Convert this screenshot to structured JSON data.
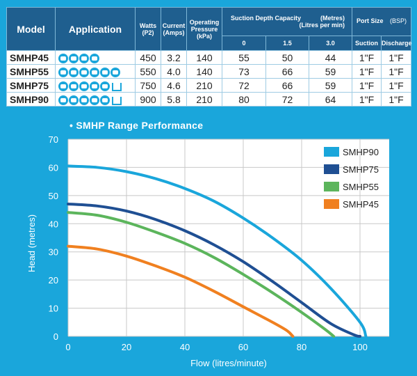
{
  "table": {
    "headers": {
      "model": "Model",
      "application": "Application",
      "watts": "Watts",
      "watts_unit": "(P2)",
      "current": "Current",
      "current_unit": "(Amps)",
      "pressure": "Operating Pressure",
      "pressure_unit": "(kPa)",
      "suction_title": "Suction Depth Capacity",
      "suction_unit1": "(Metres)",
      "suction_unit2": "(Litres per min)",
      "suction_depths": [
        "0",
        "1.5",
        "3.0"
      ],
      "port_title": "Port Size",
      "port_unit": "(BSP)",
      "port_suction": "Suction",
      "port_discharge": "Discharge"
    },
    "rows": [
      {
        "model": "SMHP45",
        "icons": [
          "tap-icon",
          "tap-icon",
          "tap-icon",
          "tap-icon"
        ],
        "watts": "450",
        "current": "3.2",
        "pressure": "140",
        "flow0": "55",
        "flow15": "50",
        "flow30": "44",
        "suction": "1\"F",
        "discharge": "1\"F"
      },
      {
        "model": "SMHP55",
        "icons": [
          "tap-icon",
          "tap-icon",
          "tap-icon",
          "tap-icon",
          "tap-icon",
          "tap-icon"
        ],
        "watts": "550",
        "current": "4.0",
        "pressure": "140",
        "flow0": "73",
        "flow15": "66",
        "flow30": "59",
        "suction": "1\"F",
        "discharge": "1\"F"
      },
      {
        "model": "SMHP75",
        "icons": [
          "tap-icon",
          "tap-icon",
          "tap-icon",
          "tap-icon",
          "tap-icon",
          "sprinkler-icon"
        ],
        "watts": "750",
        "current": "4.6",
        "pressure": "210",
        "flow0": "72",
        "flow15": "66",
        "flow30": "59",
        "suction": "1\"F",
        "discharge": "1\"F"
      },
      {
        "model": "SMHP90",
        "icons": [
          "tap-icon",
          "tap-icon",
          "tap-icon",
          "tap-icon",
          "tap-icon",
          "sprinkler-icon"
        ],
        "watts": "900",
        "current": "5.8",
        "pressure": "210",
        "flow0": "80",
        "flow15": "72",
        "flow30": "64",
        "suction": "1\"F",
        "discharge": "1\"F"
      }
    ]
  },
  "chart_data": {
    "type": "line",
    "title": "• SMHP Range Performance",
    "xlabel": "Flow (litres/minute)",
    "ylabel": "Head (metres)",
    "xlim": [
      0,
      110
    ],
    "ylim": [
      0,
      70
    ],
    "xticks": [
      0,
      20,
      40,
      60,
      80,
      100
    ],
    "yticks": [
      0,
      10,
      20,
      30,
      40,
      50,
      60,
      70
    ],
    "grid": true,
    "legend_position": "top-right",
    "series": [
      {
        "name": "SMHP90",
        "color": "#1aa6db",
        "x": [
          0,
          10,
          20,
          30,
          40,
          50,
          60,
          70,
          80,
          90,
          100,
          102
        ],
        "y": [
          60.5,
          60,
          58.5,
          56,
          52.5,
          48,
          42,
          35,
          27,
          17,
          5,
          0
        ]
      },
      {
        "name": "SMHP75",
        "color": "#1f4f93",
        "x": [
          0,
          10,
          20,
          30,
          40,
          50,
          60,
          70,
          80,
          90,
          98,
          100
        ],
        "y": [
          47,
          46.3,
          44.5,
          41.5,
          37.5,
          32.5,
          26.5,
          19.5,
          12,
          4.5,
          0.5,
          0
        ]
      },
      {
        "name": "SMHP55",
        "color": "#5cb55c",
        "x": [
          0,
          10,
          20,
          30,
          40,
          50,
          60,
          70,
          80,
          88,
          91
        ],
        "y": [
          44,
          43,
          40.5,
          37,
          33,
          28,
          22,
          15.5,
          8.5,
          2.5,
          0
        ]
      },
      {
        "name": "SMHP45",
        "color": "#f08020",
        "x": [
          0,
          10,
          20,
          30,
          40,
          50,
          60,
          70,
          75,
          77
        ],
        "y": [
          32,
          31,
          28.5,
          25,
          21,
          16,
          10.5,
          5,
          2,
          0
        ]
      }
    ]
  }
}
